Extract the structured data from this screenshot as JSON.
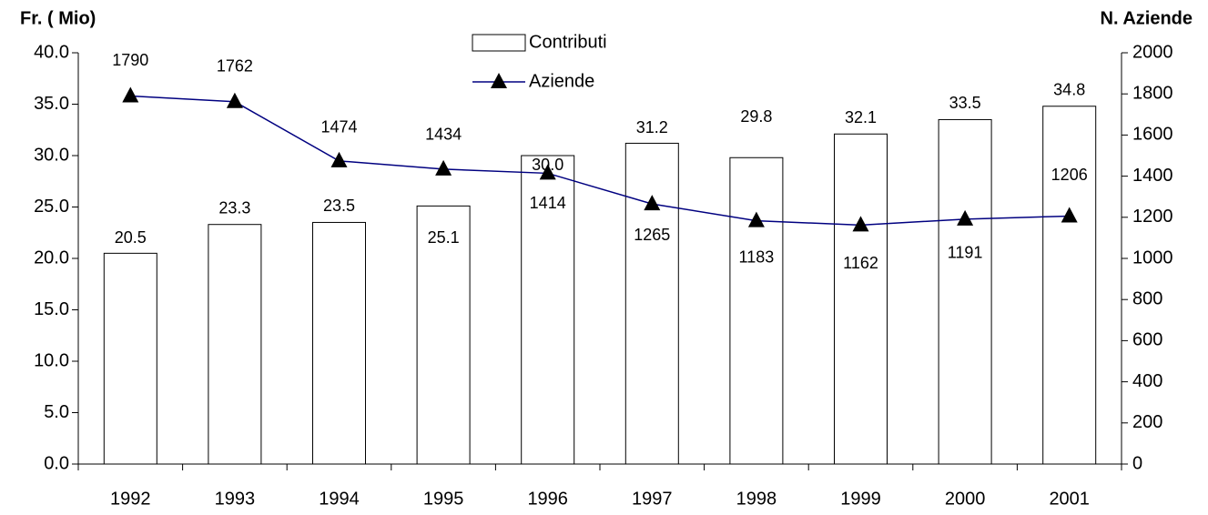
{
  "chart_data": {
    "type": "bar-line",
    "y_label": "Fr. ( Mio)",
    "y2_label": "N. Aziende",
    "categories": [
      "1992",
      "1993",
      "1994",
      "1995",
      "1996",
      "1997",
      "1998",
      "1999",
      "2000",
      "2001"
    ],
    "series": [
      {
        "name": "Contributi",
        "type": "bar",
        "color": "#ffffff",
        "values": [
          20.5,
          23.3,
          23.5,
          25.1,
          30.0,
          31.2,
          29.8,
          32.1,
          33.5,
          34.8
        ],
        "value_labels": [
          "20.5",
          "23.3",
          "23.5",
          "25.1",
          "30.0",
          "31.2",
          "29.8",
          "32.1",
          "33.5",
          "34.8"
        ]
      },
      {
        "name": "Aziende",
        "type": "line",
        "axis": "y2",
        "color": "#000080",
        "values": [
          1790,
          1762,
          1474,
          1434,
          1414,
          1265,
          1183,
          1162,
          1191,
          1206
        ]
      }
    ],
    "ylim": [
      0,
      40
    ],
    "yticks": [
      {
        "value": 0,
        "label": "0.0"
      },
      {
        "value": 5,
        "label": "5.0"
      },
      {
        "value": 10,
        "label": "10.0"
      },
      {
        "value": 15,
        "label": "15.0"
      },
      {
        "value": 20,
        "label": "20.0"
      },
      {
        "value": 25,
        "label": "25.0"
      },
      {
        "value": 30,
        "label": "30.0"
      },
      {
        "value": 35,
        "label": "35.0"
      },
      {
        "value": 40,
        "label": "40.0"
      }
    ],
    "y2lim": [
      0,
      2000
    ],
    "y2ticks": [
      0,
      200,
      400,
      600,
      800,
      1000,
      1200,
      1400,
      1600,
      1800,
      2000
    ]
  }
}
